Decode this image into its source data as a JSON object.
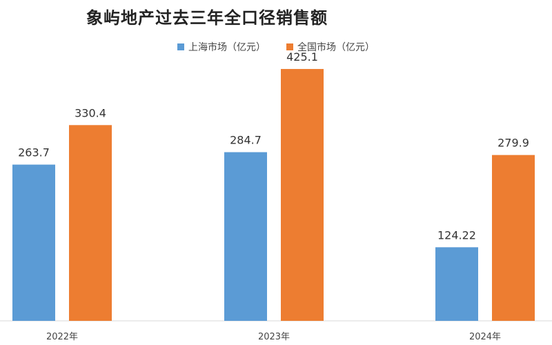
{
  "chart_data": {
    "type": "bar",
    "title": "象屿地产过去三年全口径销售额",
    "categories": [
      "2022年",
      "2023年",
      "2024年"
    ],
    "series": [
      {
        "name": "上海市场（亿元）",
        "values": [
          263.7,
          284.7,
          124.22
        ],
        "labels": [
          "263.7",
          "284.7",
          "124.22"
        ],
        "color": "#5b9bd5"
      },
      {
        "name": "全国市场（亿元）",
        "values": [
          330.4,
          425.1,
          279.9
        ],
        "labels": [
          "330.4",
          "425.1",
          "279.9"
        ],
        "color": "#ed7d31"
      }
    ],
    "ylim": [
      0,
      460
    ],
    "grid": false,
    "legend_position": "top"
  }
}
